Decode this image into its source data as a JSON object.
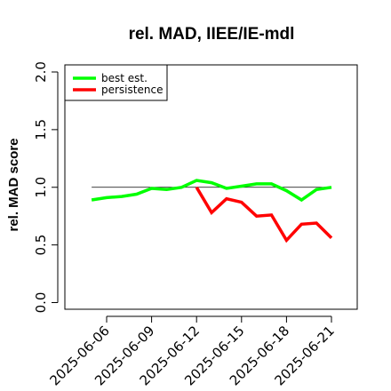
{
  "chart_data": {
    "type": "line",
    "title": "rel. MAD, IIEE/IE-mdl",
    "xlabel": "",
    "ylabel": "rel. MAD score",
    "ylim": [
      0.0,
      2.0
    ],
    "yticks": [
      "0.0",
      "0.5",
      "1.0",
      "1.5",
      "2.0"
    ],
    "xticks": [
      "2025-06-06",
      "2025-06-09",
      "2025-06-12",
      "2025-06-15",
      "2025-06-18",
      "2025-06-21"
    ],
    "x": [
      "2025-06-05",
      "2025-06-06",
      "2025-06-07",
      "2025-06-08",
      "2025-06-09",
      "2025-06-10",
      "2025-06-11",
      "2025-06-12",
      "2025-06-13",
      "2025-06-14",
      "2025-06-15",
      "2025-06-16",
      "2025-06-17",
      "2025-06-18",
      "2025-06-19",
      "2025-06-20",
      "2025-06-21"
    ],
    "reference_line": 1.0,
    "series": [
      {
        "name": "best est.",
        "color": "#00ff00",
        "values": [
          0.89,
          0.91,
          0.92,
          0.94,
          0.99,
          0.98,
          1.0,
          1.06,
          1.04,
          0.99,
          1.01,
          1.03,
          1.03,
          0.97,
          0.89,
          0.98,
          1.0
        ]
      },
      {
        "name": "persistence",
        "color": "#ff0000",
        "values": [
          null,
          null,
          null,
          null,
          null,
          null,
          null,
          1.0,
          0.78,
          0.9,
          0.87,
          0.75,
          0.76,
          0.54,
          0.68,
          0.69,
          0.56
        ]
      }
    ],
    "legend": "top-left",
    "grid": false
  }
}
